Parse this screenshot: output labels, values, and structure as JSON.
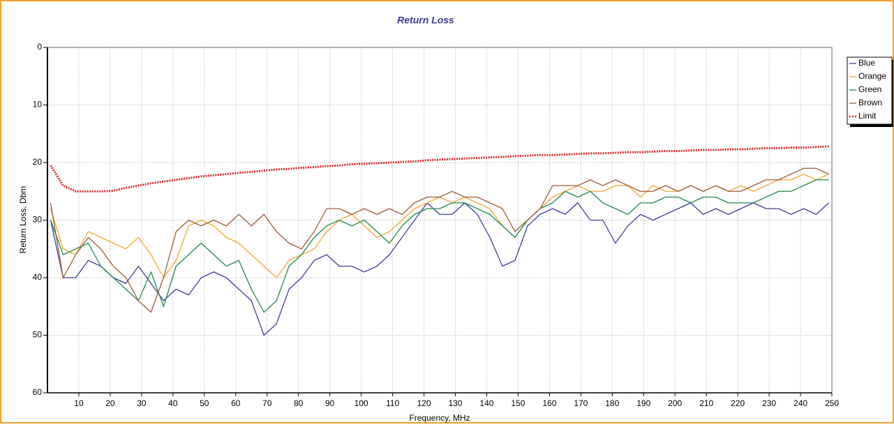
{
  "chart_data": {
    "type": "line",
    "title": "Return Loss",
    "x_label": "Frequency, MHz",
    "y_label": "Return Loss, Dbm",
    "xlim": [
      0,
      250
    ],
    "ylim": [
      0,
      60
    ],
    "y_inverted": true,
    "xticks": [
      10,
      20,
      30,
      40,
      50,
      60,
      70,
      80,
      90,
      100,
      110,
      120,
      130,
      140,
      150,
      160,
      170,
      180,
      190,
      200,
      210,
      220,
      230,
      240,
      250
    ],
    "yticks": [
      0,
      10,
      20,
      30,
      40,
      50,
      60
    ],
    "grid": true,
    "legend_position": "right",
    "x": [
      1,
      5,
      9,
      13,
      17,
      21,
      25,
      29,
      33,
      37,
      41,
      45,
      49,
      53,
      57,
      61,
      65,
      69,
      73,
      77,
      81,
      85,
      89,
      93,
      97,
      101,
      105,
      109,
      113,
      117,
      121,
      125,
      129,
      133,
      137,
      141,
      145,
      149,
      153,
      157,
      161,
      165,
      169,
      173,
      177,
      181,
      185,
      189,
      193,
      197,
      201,
      205,
      209,
      213,
      217,
      221,
      225,
      229,
      233,
      237,
      241,
      245,
      249
    ],
    "series": [
      {
        "name": "Blue",
        "color": "#3d3d9a",
        "style": "solid",
        "values": [
          30,
          40,
          40,
          37,
          38,
          40,
          41,
          38,
          41,
          44,
          42,
          43,
          40,
          39,
          40,
          42,
          44,
          50,
          48,
          42,
          40,
          37,
          36,
          38,
          38,
          39,
          38,
          36,
          33,
          30,
          27,
          29,
          29,
          27,
          29,
          33,
          38,
          37,
          31,
          29,
          28,
          29,
          27,
          30,
          30,
          34,
          31,
          29,
          30,
          29,
          28,
          27,
          29,
          28,
          29,
          28,
          27,
          28,
          28,
          29,
          28,
          29,
          27
        ]
      },
      {
        "name": "Orange",
        "color": "#f0a830",
        "style": "solid",
        "values": [
          28,
          35,
          36,
          32,
          33,
          34,
          35,
          33,
          36,
          40,
          37,
          31,
          30,
          31,
          33,
          34,
          36,
          38,
          40,
          37,
          36,
          35,
          32,
          30,
          29,
          31,
          33,
          32,
          30,
          28,
          27,
          26,
          27,
          26,
          27,
          28,
          31,
          33,
          30,
          28,
          26,
          25,
          24,
          25,
          25,
          24,
          24,
          26,
          24,
          25,
          25,
          24,
          25,
          24,
          25,
          24,
          25,
          24,
          23,
          23,
          22,
          23,
          22
        ]
      },
      {
        "name": "Green",
        "color": "#1f8a4a",
        "style": "solid",
        "values": [
          30,
          36,
          35,
          34,
          38,
          40,
          42,
          44,
          39,
          45,
          38,
          36,
          34,
          36,
          38,
          37,
          42,
          46,
          44,
          38,
          36,
          33,
          31,
          30,
          31,
          30,
          32,
          34,
          31,
          29,
          28,
          28,
          27,
          27,
          28,
          29,
          31,
          33,
          30,
          28,
          27,
          25,
          26,
          25,
          27,
          28,
          29,
          27,
          27,
          26,
          26,
          27,
          26,
          26,
          27,
          27,
          27,
          26,
          25,
          25,
          24,
          23,
          23
        ]
      },
      {
        "name": "Brown",
        "color": "#9a5c38",
        "style": "solid",
        "values": [
          27,
          40,
          36,
          33,
          35,
          38,
          40,
          44,
          46,
          40,
          32,
          30,
          31,
          30,
          31,
          29,
          31,
          29,
          32,
          34,
          35,
          32,
          28,
          28,
          29,
          28,
          29,
          28,
          29,
          27,
          26,
          26,
          25,
          26,
          26,
          27,
          28,
          32,
          30,
          28,
          24,
          24,
          24,
          23,
          24,
          23,
          24,
          25,
          25,
          24,
          25,
          24,
          25,
          24,
          25,
          25,
          24,
          23,
          23,
          22,
          21,
          21,
          22
        ]
      },
      {
        "name": "Limit",
        "color": "#d42a2a",
        "style": "dotted",
        "values": [
          20.5,
          24,
          25,
          25,
          25,
          24.9,
          24.4,
          24,
          23.6,
          23.3,
          23,
          22.7,
          22.4,
          22.2,
          22,
          21.8,
          21.6,
          21.4,
          21.2,
          21.1,
          20.9,
          20.8,
          20.6,
          20.5,
          20.3,
          20.2,
          20.1,
          20,
          19.9,
          19.8,
          19.6,
          19.5,
          19.4,
          19.3,
          19.2,
          19.1,
          19,
          18.9,
          18.8,
          18.7,
          18.7,
          18.6,
          18.5,
          18.4,
          18.4,
          18.3,
          18.2,
          18.2,
          18.1,
          18,
          18,
          17.9,
          17.8,
          17.8,
          17.7,
          17.7,
          17.6,
          17.5,
          17.5,
          17.4,
          17.4,
          17.3,
          17.2
        ]
      }
    ]
  }
}
